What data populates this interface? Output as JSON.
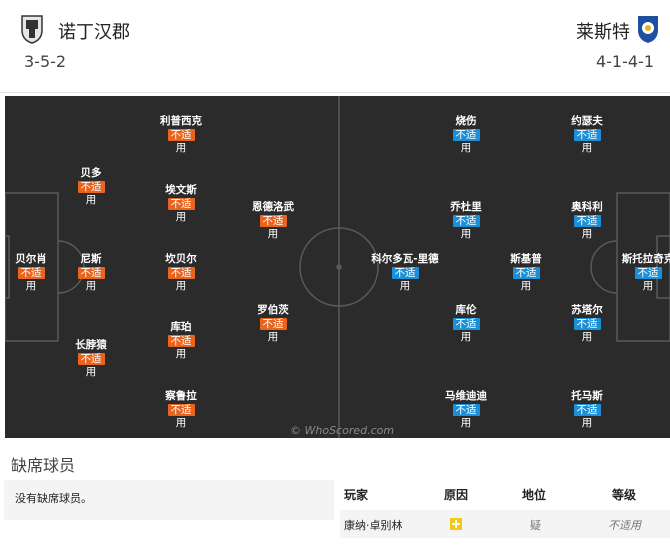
{
  "home": {
    "name": "诺丁汉郡",
    "formation": "3-5-2",
    "players": [
      {
        "name": "贝尔肖",
        "badge": "不适",
        "status": "用"
      },
      {
        "name": "贝多",
        "badge": "不适",
        "status": "用"
      },
      {
        "name": "尼斯",
        "badge": "不适",
        "status": "用"
      },
      {
        "name": "长脖猿",
        "badge": "不适",
        "status": "用"
      },
      {
        "name": "利普西克",
        "badge": "不适",
        "status": "用"
      },
      {
        "name": "埃文斯",
        "badge": "不适",
        "status": "用"
      },
      {
        "name": "坎贝尔",
        "badge": "不适",
        "status": "用"
      },
      {
        "name": "库珀",
        "badge": "不适",
        "status": "用"
      },
      {
        "name": "察鲁拉",
        "badge": "不适",
        "status": "用"
      },
      {
        "name": "恩德洛武",
        "badge": "不适",
        "status": "用"
      },
      {
        "name": "罗伯茨",
        "badge": "不适",
        "status": "用"
      }
    ]
  },
  "away": {
    "name": "莱斯特",
    "formation": "4-1-4-1",
    "players": [
      {
        "name": "斯托拉奇克",
        "badge": "不适",
        "status": "用"
      },
      {
        "name": "约瑟夫",
        "badge": "不适",
        "status": "用"
      },
      {
        "name": "奥科利",
        "badge": "不适",
        "status": "用"
      },
      {
        "name": "苏塔尔",
        "badge": "不适",
        "status": "用"
      },
      {
        "name": "托马斯",
        "badge": "不适",
        "status": "用"
      },
      {
        "name": "斯基普",
        "badge": "不适",
        "status": "用"
      },
      {
        "name": "烧伤",
        "badge": "不适",
        "status": "用"
      },
      {
        "name": "乔杜里",
        "badge": "不适",
        "status": "用"
      },
      {
        "name": "库伦",
        "badge": "不适",
        "status": "用"
      },
      {
        "name": "马维迪迪",
        "badge": "不适",
        "status": "用"
      },
      {
        "name": "科尔多瓦-里德",
        "badge": "不适",
        "status": "用"
      }
    ]
  },
  "watermark": "© WhoScored.com",
  "missing": {
    "title": "缺席球员",
    "none_text": "没有缺席球员。",
    "headers": {
      "player": "玩家",
      "reason": "原因",
      "position": "地位",
      "level": "等级"
    },
    "rows": [
      {
        "player": "康纳·卓别林",
        "reason_icon": "medical-cross-icon",
        "position": "疑",
        "level": "不适用"
      }
    ]
  },
  "colors": {
    "pitch": "#2b2b2b",
    "home_badge": "#e8641f",
    "away_badge": "#1b8fd8",
    "medical_icon": "#f2c811"
  }
}
